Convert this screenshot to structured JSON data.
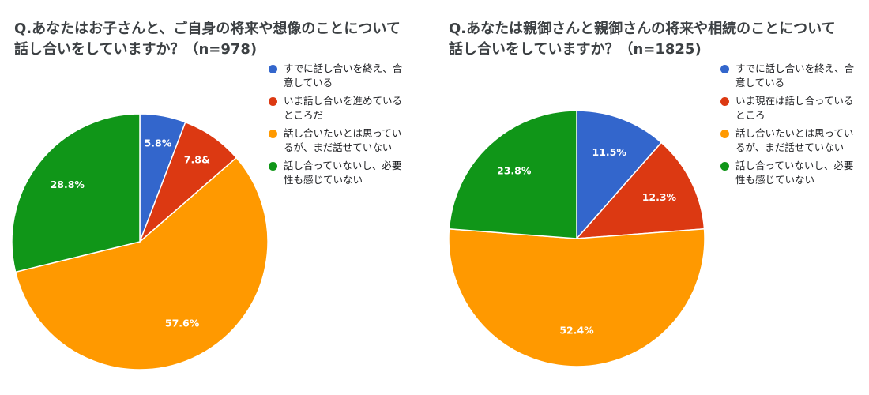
{
  "colors": {
    "blue": "#3366cc",
    "red": "#dc3912",
    "orange": "#ff9900",
    "green": "#109618"
  },
  "chart_data": [
    {
      "type": "pie",
      "title": "Q.あなたはお子さんと、ご自身の将来や想像のことについて\n話し合いをしていますか？（n=978)",
      "categories": [
        "すでに話し合いを終え、合\n意している",
        "いま話し合いを進めている\nところだ",
        "話し合いたいとは思ってい\nるが、まだ話せていない",
        "話し合っていないし、必要\n性も感じていない"
      ],
      "values": [
        5.8,
        7.8,
        57.6,
        28.8
      ],
      "value_labels": [
        "5.8%",
        "7.8&",
        "57.6%",
        "28.8%"
      ],
      "colors": [
        "#3366cc",
        "#dc3912",
        "#ff9900",
        "#109618"
      ],
      "legend_position": "right"
    },
    {
      "type": "pie",
      "title": "Q.あなたは親御さんと親御さんの将来や相続のことについて\n話し合いをしていますか？（n=1825)",
      "categories": [
        "すでに話し合いを終え、合\n意している",
        "いま現在は話し合っている\nところ",
        "話し合いたいとは思ってい\nるが、まだ話せていない",
        "話し合っていないし、必要\n性も感じていない"
      ],
      "values": [
        11.5,
        12.3,
        52.4,
        23.8
      ],
      "value_labels": [
        "11.5%",
        "12.3%",
        "52.4%",
        "23.8%"
      ],
      "colors": [
        "#3366cc",
        "#dc3912",
        "#ff9900",
        "#109618"
      ],
      "legend_position": "right"
    }
  ]
}
